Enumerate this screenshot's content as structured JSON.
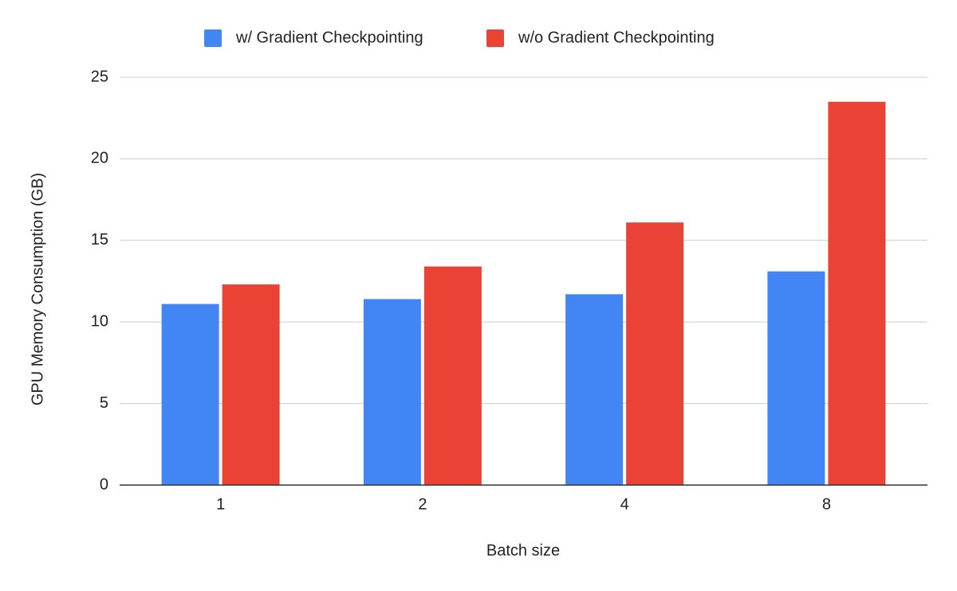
{
  "chart_data": {
    "type": "bar",
    "categories": [
      "1",
      "2",
      "4",
      "8"
    ],
    "series": [
      {
        "name": "w/ Gradient Checkpointing",
        "color": "#4285f4",
        "values": [
          11.1,
          11.4,
          11.7,
          13.1
        ]
      },
      {
        "name": "w/o Gradient Checkpointing",
        "color": "#ea4335",
        "values": [
          12.3,
          13.4,
          16.1,
          23.5
        ]
      }
    ],
    "x_label": "Batch size",
    "y_label": "GPU Memory Consumption (GB)",
    "ylim": [
      0,
      25
    ],
    "yticks": [
      0,
      5,
      10,
      15,
      20,
      25
    ],
    "grid": true,
    "legend": "top"
  }
}
